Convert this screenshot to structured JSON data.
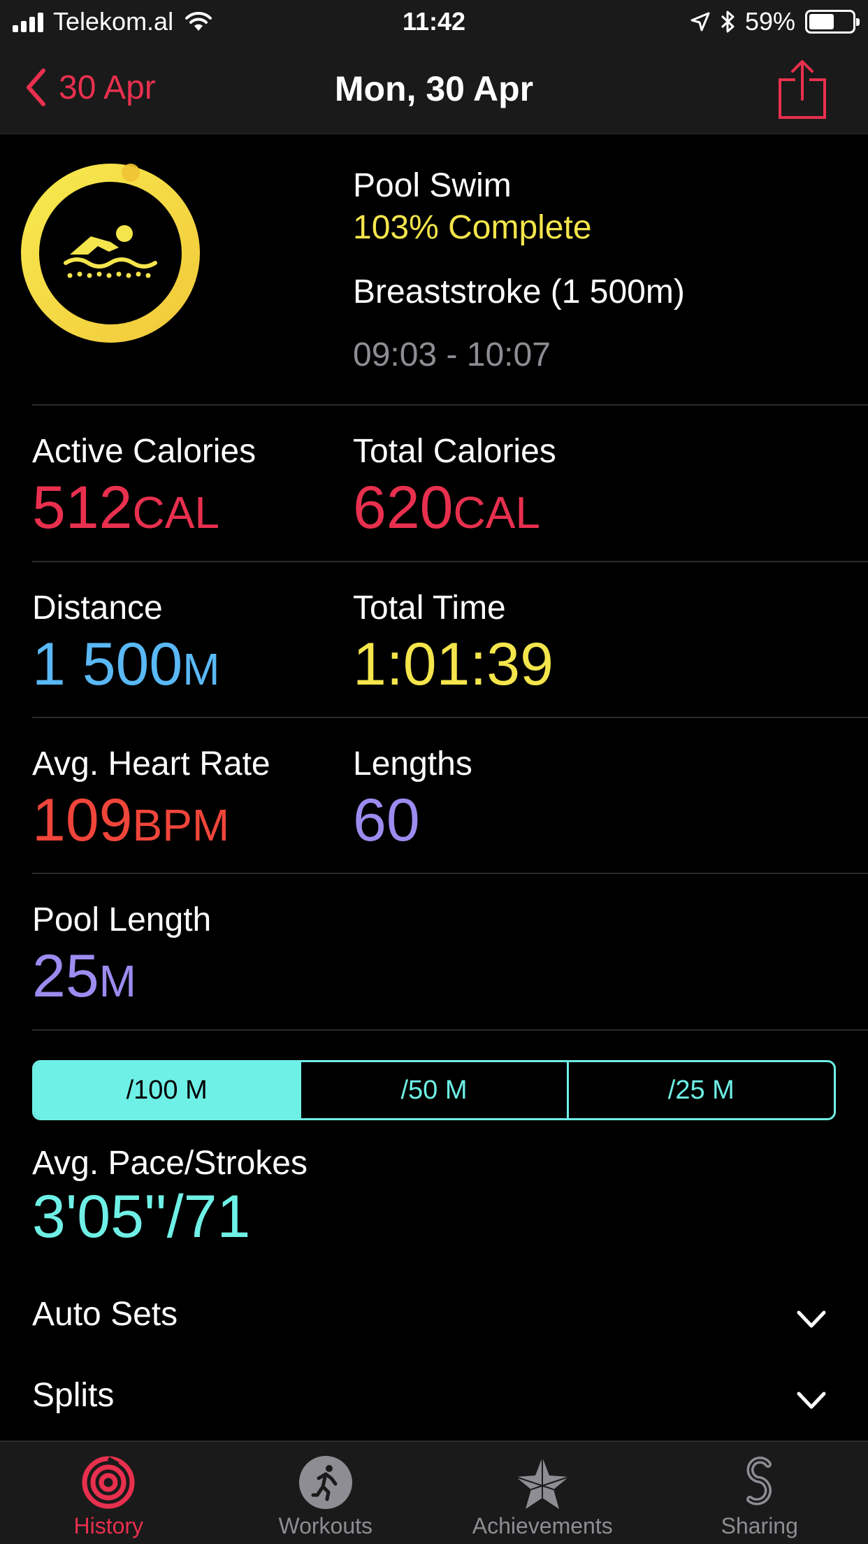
{
  "status_bar": {
    "carrier": "Telekom.al",
    "time": "11:42",
    "battery": "59%",
    "battery_level": 0.59
  },
  "nav": {
    "back_label": "30 Apr",
    "title": "Mon, 30 Apr",
    "share_icon": "share-icon"
  },
  "workout": {
    "icon": "swimmer-icon",
    "ring_progress": 1.03,
    "ring_color": "#f4e54c",
    "name": "Pool Swim",
    "completion": "103% Complete",
    "stroke": "Breaststroke (1 500m)",
    "time_range": "09:03 - 10:07"
  },
  "stats": {
    "active_calories": {
      "label": "Active Calories",
      "value": "512",
      "unit": "CAL",
      "color": "#e8304e"
    },
    "total_calories": {
      "label": "Total Calories",
      "value": "620",
      "unit": "CAL",
      "color": "#e8304e"
    },
    "distance": {
      "label": "Distance",
      "value": "1 500",
      "unit": "M",
      "color": "#5ab8f5"
    },
    "total_time": {
      "label": "Total Time",
      "value": "1:01:39",
      "unit": "",
      "color": "#f4e54c"
    },
    "avg_heart_rate": {
      "label": "Avg. Heart Rate",
      "value": "109",
      "unit": "BPM",
      "color": "#f0453a"
    },
    "lengths": {
      "label": "Lengths",
      "value": "60",
      "unit": "",
      "color": "#9c8cf0"
    },
    "pool_length": {
      "label": "Pool Length",
      "value": "25",
      "unit": "M",
      "color": "#9c8cf0"
    }
  },
  "pace_segment": {
    "options": [
      "/100 M",
      "/50 M",
      "/25 M"
    ],
    "selected": "/100 M",
    "color": "#6ff0e6"
  },
  "pace": {
    "label": "Avg. Pace/Strokes",
    "value": "3'05''/71"
  },
  "sections": [
    {
      "label": "Auto Sets",
      "icon": "chevron-down-icon"
    },
    {
      "label": "Splits",
      "icon": "chevron-down-icon"
    }
  ],
  "tabs": [
    {
      "label": "History",
      "icon": "history-rings-icon",
      "active": true
    },
    {
      "label": "Workouts",
      "icon": "runner-icon",
      "active": false
    },
    {
      "label": "Achievements",
      "icon": "star-icon",
      "active": false
    },
    {
      "label": "Sharing",
      "icon": "sharing-icon",
      "active": false
    }
  ],
  "colors": {
    "accent_red": "#e8304e",
    "background": "#000000",
    "bar_background": "#1a1a1a"
  }
}
